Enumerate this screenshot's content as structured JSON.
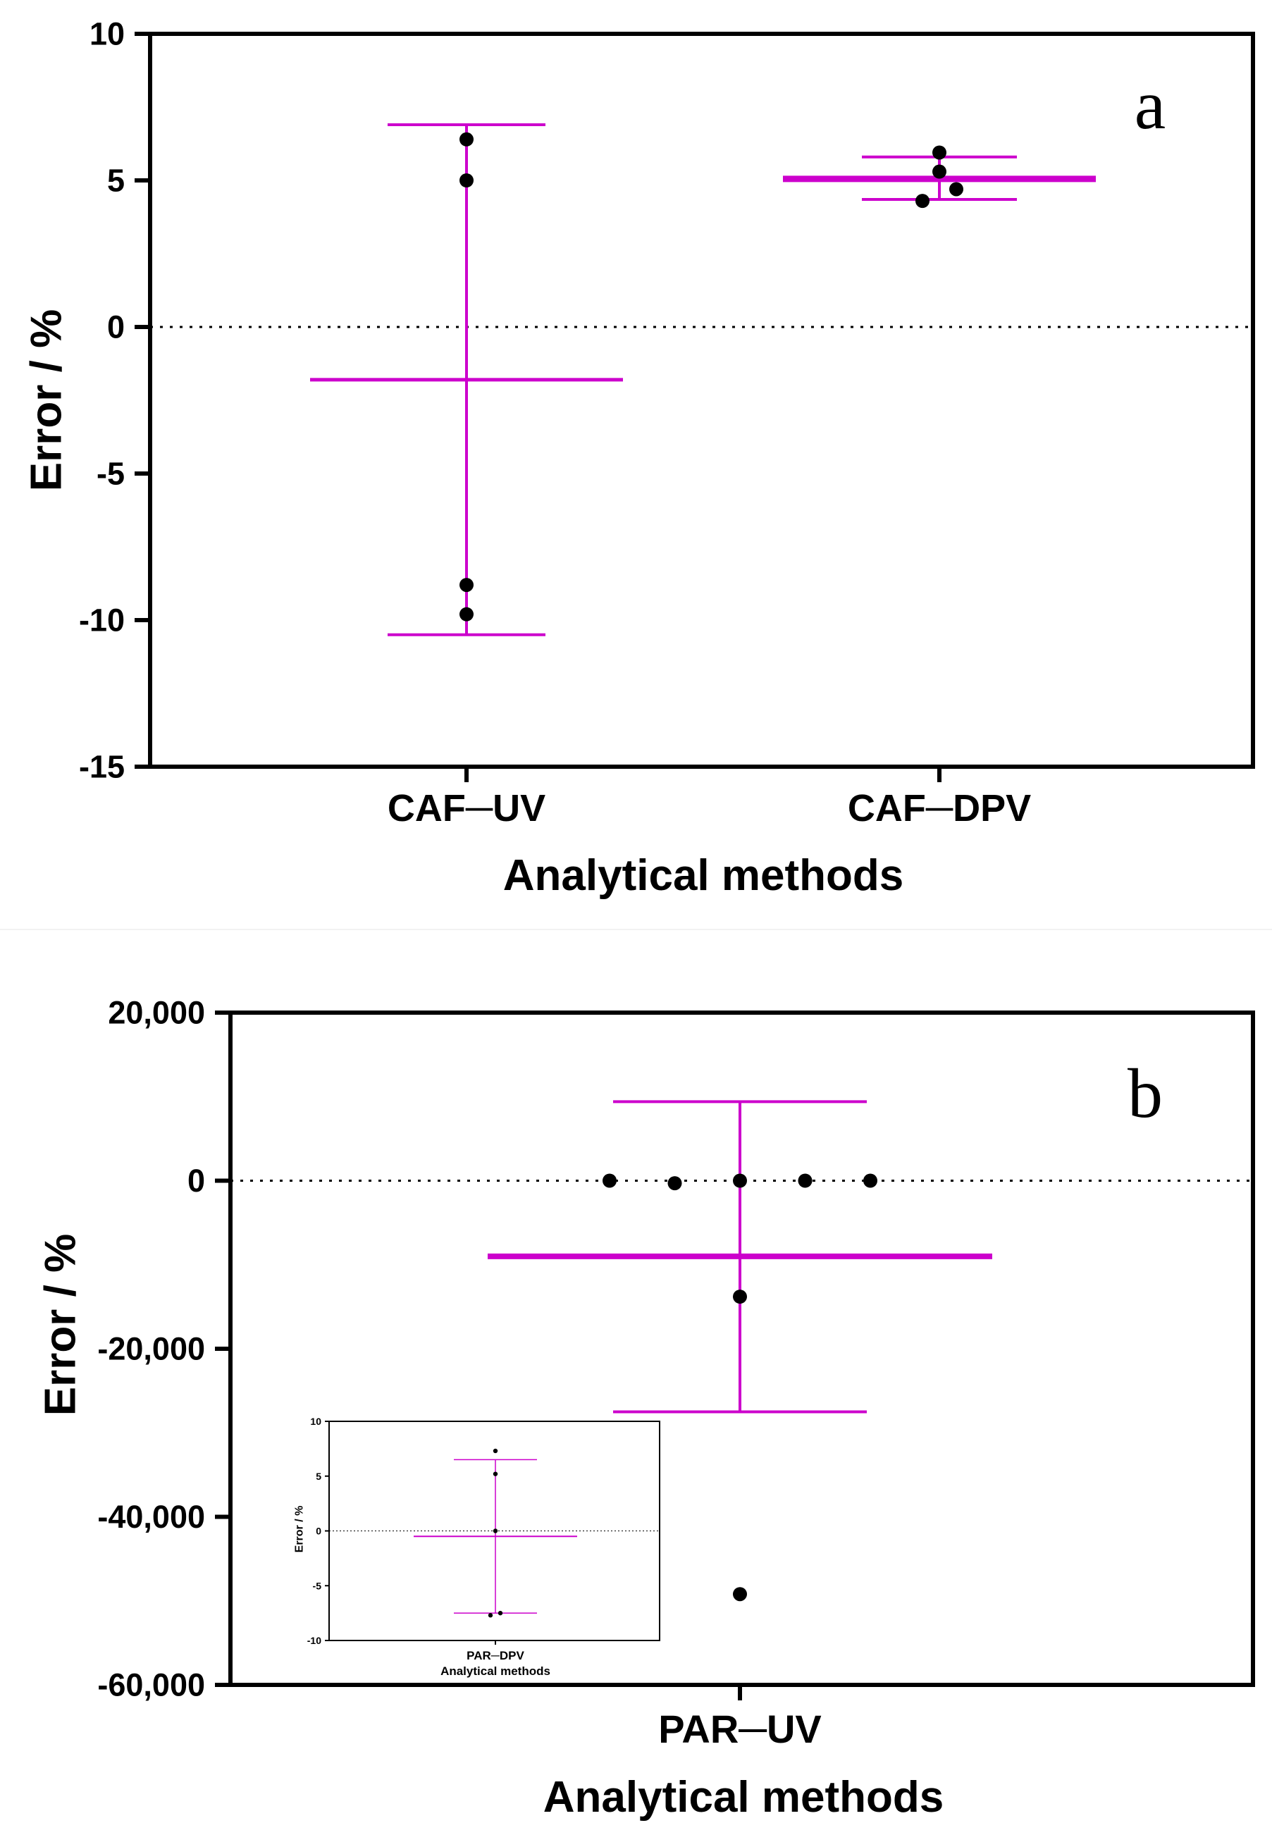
{
  "colors": {
    "error_bar": "#cc00cc",
    "point": "#000000",
    "axis": "#000000"
  },
  "chart_data": [
    {
      "id": "a",
      "type": "scatter",
      "panel_label": "a",
      "ylabel": "Error / %",
      "xlabel": "Analytical methods",
      "ylim": [
        -15,
        10
      ],
      "yticks": [
        -15,
        -10,
        -5,
        0,
        5,
        10
      ],
      "ytick_labels": [
        "-15",
        "-10",
        "-5",
        "0",
        "5",
        "10"
      ],
      "reference_line": 0,
      "categories": [
        "CAF─UV",
        "CAF─DPV"
      ],
      "groups": [
        {
          "category": "CAF─UV",
          "mean": -1.8,
          "upper": 6.9,
          "lower": -10.5,
          "points": [
            {
              "x": 0,
              "y": 6.4
            },
            {
              "x": 0,
              "y": 5.0
            },
            {
              "x": 0,
              "y": -8.8
            },
            {
              "x": 0,
              "y": -9.8
            }
          ]
        },
        {
          "category": "CAF─DPV",
          "mean": 5.05,
          "upper": 5.8,
          "lower": 4.35,
          "points": [
            {
              "x": -0.06,
              "y": 4.3
            },
            {
              "x": 0,
              "y": 5.3
            },
            {
              "x": 0,
              "y": 5.95
            },
            {
              "x": 0.06,
              "y": 4.7
            }
          ]
        }
      ]
    },
    {
      "id": "b",
      "type": "scatter",
      "panel_label": "b",
      "ylabel": "Error / %",
      "xlabel": "Analytical methods",
      "ylim": [
        -60000,
        20000
      ],
      "yticks": [
        -60000,
        -40000,
        -20000,
        0,
        20000
      ],
      "ytick_labels": [
        "-60,000",
        "-40,000",
        "-20,000",
        "0",
        "20,000"
      ],
      "reference_line": 0,
      "categories": [
        "PAR─UV"
      ],
      "groups": [
        {
          "category": "PAR─UV",
          "mean": -9000,
          "upper": 9400,
          "lower": -27500,
          "points": [
            {
              "x": -0.2,
              "y": 0
            },
            {
              "x": -0.1,
              "y": -300
            },
            {
              "x": 0,
              "y": 0
            },
            {
              "x": 0.1,
              "y": 0
            },
            {
              "x": 0.2,
              "y": 0
            },
            {
              "x": 0,
              "y": -13800
            },
            {
              "x": 0,
              "y": -49200
            }
          ]
        }
      ]
    },
    {
      "id": "b-inset",
      "type": "scatter",
      "panel_label": "",
      "ylabel": "Error / %",
      "xlabel": "Analytical methods",
      "ylim": [
        -10,
        10
      ],
      "yticks": [
        -10,
        -5,
        0,
        5,
        10
      ],
      "ytick_labels": [
        "-10",
        "-5",
        "0",
        "5",
        "10"
      ],
      "reference_line": 0,
      "categories": [
        "PAR─DPV"
      ],
      "groups": [
        {
          "category": "PAR─DPV",
          "mean": -0.5,
          "upper": 6.5,
          "lower": -7.5,
          "points": [
            {
              "x": 0,
              "y": 7.3
            },
            {
              "x": 0,
              "y": 5.2
            },
            {
              "x": 0,
              "y": 0
            },
            {
              "x": -0.05,
              "y": -7.7
            },
            {
              "x": 0.05,
              "y": -7.5
            }
          ]
        }
      ]
    }
  ]
}
